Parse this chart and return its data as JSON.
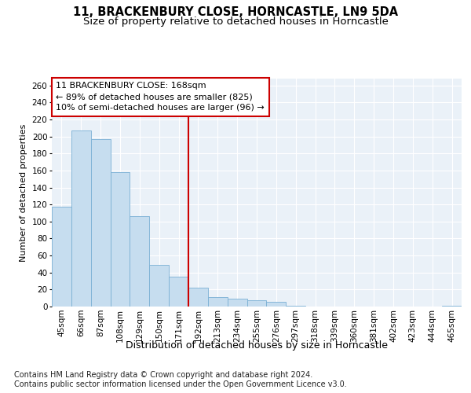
{
  "title1": "11, BRACKENBURY CLOSE, HORNCASTLE, LN9 5DA",
  "title2": "Size of property relative to detached houses in Horncastle",
  "xlabel": "Distribution of detached houses by size in Horncastle",
  "ylabel": "Number of detached properties",
  "categories": [
    "45sqm",
    "66sqm",
    "87sqm",
    "108sqm",
    "129sqm",
    "150sqm",
    "171sqm",
    "192sqm",
    "213sqm",
    "234sqm",
    "255sqm",
    "276sqm",
    "297sqm",
    "318sqm",
    "339sqm",
    "360sqm",
    "381sqm",
    "402sqm",
    "423sqm",
    "444sqm",
    "465sqm"
  ],
  "values": [
    117,
    207,
    197,
    158,
    106,
    49,
    35,
    22,
    11,
    9,
    7,
    6,
    1,
    0,
    0,
    0,
    0,
    0,
    0,
    0,
    1
  ],
  "bar_color": "#c6ddef",
  "bar_edge_color": "#7ab0d4",
  "reference_line_x": 6.5,
  "reference_line_color": "#cc0000",
  "annotation_box_color": "#cc0000",
  "annotation_lines": [
    "11 BRACKENBURY CLOSE: 168sqm",
    "← 89% of detached houses are smaller (825)",
    "10% of semi-detached houses are larger (96) →"
  ],
  "ylim": [
    0,
    268
  ],
  "yticks": [
    0,
    20,
    40,
    60,
    80,
    100,
    120,
    140,
    160,
    180,
    200,
    220,
    240,
    260
  ],
  "footnote1": "Contains HM Land Registry data © Crown copyright and database right 2024.",
  "footnote2": "Contains public sector information licensed under the Open Government Licence v3.0.",
  "background_color": "#ffffff",
  "plot_bg_color": "#eaf1f8",
  "grid_color": "#ffffff",
  "title1_fontsize": 10.5,
  "title2_fontsize": 9.5,
  "xlabel_fontsize": 9,
  "ylabel_fontsize": 8,
  "tick_fontsize": 7.5,
  "annot_fontsize": 8,
  "footnote_fontsize": 7
}
